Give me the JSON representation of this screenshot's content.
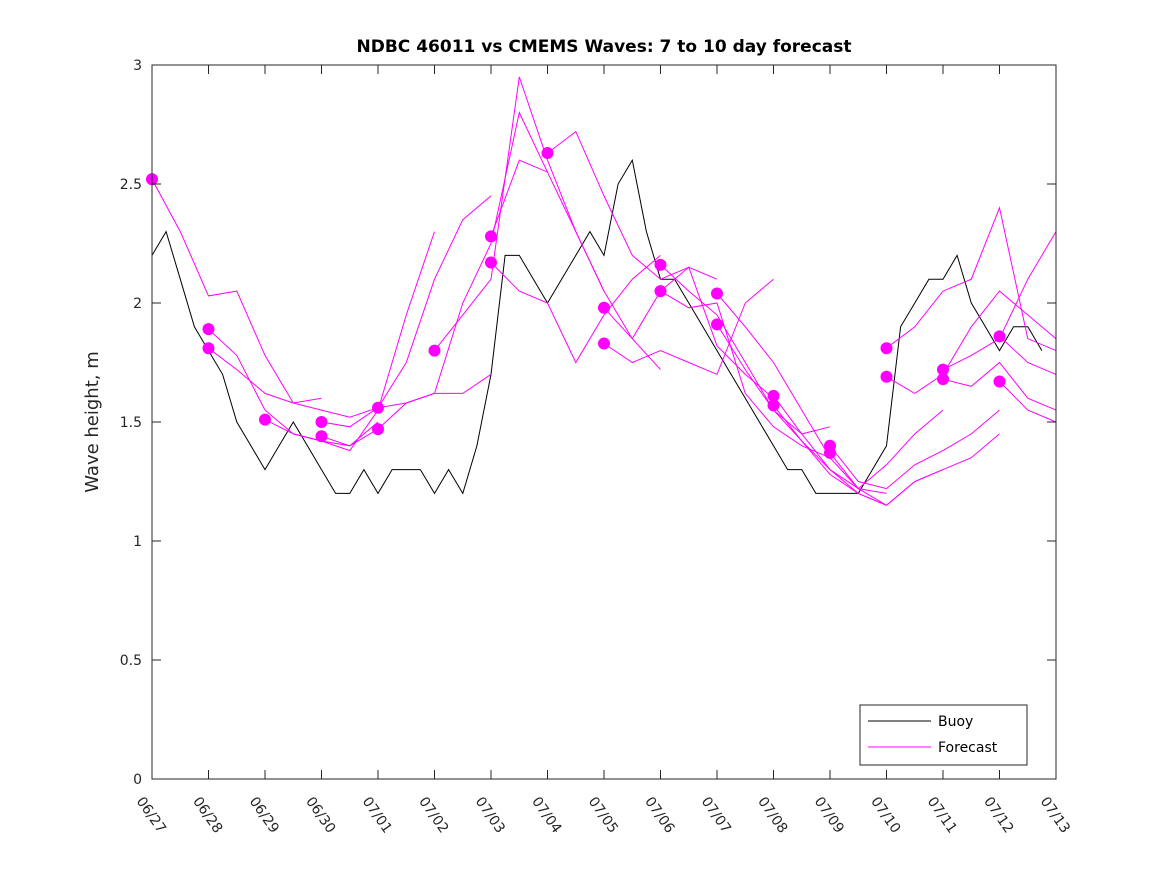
{
  "chart_data": {
    "type": "line",
    "title": "NDBC 46011 vs CMEMS Waves: 7 to 10 day forecast",
    "xlabel": "",
    "ylabel": "Wave height, m",
    "xlim": [
      "06/27",
      "07/13"
    ],
    "ylim": [
      0,
      3
    ],
    "x_tick_labels": [
      "06/27",
      "06/28",
      "06/29",
      "06/30",
      "07/01",
      "07/02",
      "07/03",
      "07/04",
      "07/05",
      "07/06",
      "07/07",
      "07/08",
      "07/09",
      "07/10",
      "07/11",
      "07/12",
      "07/13"
    ],
    "y_tick_labels": [
      "0",
      "0.5",
      "1",
      "1.5",
      "2",
      "2.5",
      "3"
    ],
    "grid": false,
    "legend": {
      "position": "bottom-right",
      "entries": [
        "Buoy",
        "Forecast"
      ]
    },
    "colors": {
      "buoy": "#000000",
      "forecast": "#ff00ff"
    },
    "series": [
      {
        "name": "Buoy",
        "x": [
          "06/27 00:00",
          "06/27 06:00",
          "06/27 12:00",
          "06/27 18:00",
          "06/28 00:00",
          "06/28 06:00",
          "06/28 12:00",
          "06/28 18:00",
          "06/29 00:00",
          "06/29 06:00",
          "06/29 12:00",
          "06/29 18:00",
          "06/30 00:00",
          "06/30 06:00",
          "06/30 12:00",
          "06/30 18:00",
          "07/01 00:00",
          "07/01 06:00",
          "07/01 12:00",
          "07/01 18:00",
          "07/02 00:00",
          "07/02 06:00",
          "07/02 12:00",
          "07/02 18:00",
          "07/03 00:00",
          "07/03 06:00",
          "07/03 12:00",
          "07/03 18:00",
          "07/04 00:00",
          "07/04 06:00",
          "07/04 12:00",
          "07/04 18:00",
          "07/05 00:00",
          "07/05 06:00",
          "07/05 12:00",
          "07/05 18:00",
          "07/06 00:00",
          "07/06 06:00",
          "07/06 12:00",
          "07/06 18:00",
          "07/07 00:00",
          "07/07 06:00",
          "07/07 12:00",
          "07/07 18:00",
          "07/08 00:00",
          "07/08 06:00",
          "07/08 12:00",
          "07/08 18:00",
          "07/09 00:00",
          "07/09 06:00",
          "07/09 12:00",
          "07/09 18:00",
          "07/10 00:00",
          "07/10 06:00",
          "07/10 12:00",
          "07/10 18:00",
          "07/11 00:00",
          "07/11 06:00",
          "07/11 12:00",
          "07/11 18:00",
          "07/12 00:00",
          "07/12 06:00",
          "07/12 12:00",
          "07/12 18:00"
        ],
        "values": [
          2.2,
          2.3,
          2.1,
          1.9,
          1.8,
          1.7,
          1.5,
          1.4,
          1.3,
          1.4,
          1.5,
          1.4,
          1.3,
          1.2,
          1.2,
          1.3,
          1.2,
          1.3,
          1.3,
          1.3,
          1.2,
          1.3,
          1.2,
          1.4,
          1.7,
          2.2,
          2.2,
          2.1,
          2.0,
          2.1,
          2.2,
          2.3,
          2.2,
          2.5,
          2.6,
          2.3,
          2.1,
          2.1,
          2.0,
          1.9,
          1.8,
          1.7,
          1.6,
          1.5,
          1.4,
          1.3,
          1.3,
          1.2,
          1.2,
          1.2,
          1.2,
          1.3,
          1.4,
          1.9,
          2.0,
          2.1,
          2.1,
          2.2,
          2.0,
          1.9,
          1.8,
          1.9,
          1.9,
          1.8
        ]
      },
      {
        "name": "Forecast",
        "runs": [
          {
            "x": [
              "06/27 00:00",
              "06/27 12:00",
              "06/28 00:00",
              "06/28 12:00",
              "06/29 00:00",
              "06/29 12:00",
              "06/30 00:00"
            ],
            "values": [
              2.52,
              2.3,
              2.03,
              2.05,
              1.78,
              1.58,
              1.6
            ]
          },
          {
            "x": [
              "06/28 00:00",
              "06/28 12:00",
              "06/29 00:00",
              "06/29 12:00",
              "06/30 00:00",
              "06/30 12:00",
              "07/01 00:00"
            ],
            "values": [
              1.89,
              1.78,
              1.55,
              1.45,
              1.42,
              1.4,
              1.5
            ]
          },
          {
            "x": [
              "06/28 00:00",
              "06/28 12:00",
              "06/29 00:00",
              "06/29 12:00",
              "06/30 00:00",
              "06/30 12:00",
              "07/01 00:00"
            ],
            "values": [
              1.81,
              1.72,
              1.62,
              1.58,
              1.55,
              1.52,
              1.56
            ]
          },
          {
            "x": [
              "06/29 00:00",
              "06/29 12:00",
              "06/30 00:00",
              "06/30 12:00",
              "07/01 00:00",
              "07/01 12:00",
              "07/02 00:00"
            ],
            "values": [
              1.51,
              1.45,
              1.42,
              1.38,
              1.55,
              1.95,
              2.3
            ]
          },
          {
            "x": [
              "06/30 00:00",
              "06/30 12:00",
              "07/01 00:00",
              "07/01 12:00",
              "07/02 00:00",
              "07/02 12:00",
              "07/03 00:00"
            ],
            "values": [
              1.5,
              1.48,
              1.56,
              1.75,
              2.1,
              2.35,
              2.45
            ]
          },
          {
            "x": [
              "06/30 00:00",
              "06/30 12:00",
              "07/01 00:00",
              "07/01 12:00",
              "07/02 00:00",
              "07/02 12:00",
              "07/03 00:00"
            ],
            "values": [
              1.44,
              1.4,
              1.47,
              1.58,
              1.62,
              1.62,
              1.7
            ]
          },
          {
            "x": [
              "07/01 00:00",
              "07/01 12:00",
              "07/02 00:00",
              "07/02 12:00",
              "07/03 00:00",
              "07/03 12:00",
              "07/04 00:00"
            ],
            "values": [
              1.56,
              1.58,
              1.62,
              2.0,
              2.25,
              2.8,
              2.55
            ]
          },
          {
            "x": [
              "07/02 00:00",
              "07/02 12:00",
              "07/03 00:00",
              "07/03 12:00",
              "07/04 00:00",
              "07/04 12:00",
              "07/05 00:00"
            ],
            "values": [
              1.8,
              1.95,
              2.1,
              2.95,
              2.6,
              2.3,
              2.05
            ]
          },
          {
            "x": [
              "07/03 00:00",
              "07/03 12:00",
              "07/04 00:00",
              "07/04 12:00",
              "07/05 00:00",
              "07/05 12:00",
              "07/06 00:00"
            ],
            "values": [
              2.28,
              2.6,
              2.55,
              2.3,
              2.05,
              1.85,
              1.72
            ]
          },
          {
            "x": [
              "07/03 00:00",
              "07/03 12:00",
              "07/04 00:00",
              "07/04 12:00",
              "07/05 00:00",
              "07/05 12:00",
              "07/06 00:00"
            ],
            "values": [
              2.17,
              2.05,
              2.0,
              1.75,
              1.95,
              2.1,
              2.2
            ]
          },
          {
            "x": [
              "07/04 00:00",
              "07/04 12:00",
              "07/05 00:00",
              "07/05 12:00",
              "07/06 00:00",
              "07/06 12:00",
              "07/07 00:00"
            ],
            "values": [
              2.63,
              2.72,
              2.45,
              2.2,
              2.1,
              2.15,
              2.1
            ]
          },
          {
            "x": [
              "07/05 00:00",
              "07/05 12:00",
              "07/06 00:00",
              "07/06 12:00",
              "07/07 00:00",
              "07/07 12:00",
              "07/08 00:00"
            ],
            "values": [
              1.98,
              1.85,
              2.05,
              2.15,
              1.82,
              1.7,
              1.6
            ]
          },
          {
            "x": [
              "07/05 00:00",
              "07/05 12:00",
              "07/06 00:00",
              "07/06 12:00",
              "07/07 00:00",
              "07/07 12:00",
              "07/08 00:00"
            ],
            "values": [
              1.83,
              1.75,
              1.8,
              1.75,
              1.7,
              2.0,
              2.1
            ]
          },
          {
            "x": [
              "07/06 00:00",
              "07/06 12:00",
              "07/07 00:00",
              "07/07 12:00",
              "07/08 00:00",
              "07/08 12:00",
              "07/09 00:00"
            ],
            "values": [
              2.16,
              2.05,
              1.95,
              1.75,
              1.55,
              1.45,
              1.48
            ]
          },
          {
            "x": [
              "07/06 00:00",
              "07/06 12:00",
              "07/07 00:00",
              "07/07 12:00",
              "07/08 00:00",
              "07/08 12:00",
              "07/09 00:00"
            ],
            "values": [
              2.05,
              1.98,
              2.0,
              1.62,
              1.48,
              1.4,
              1.35
            ]
          },
          {
            "x": [
              "07/07 00:00",
              "07/07 12:00",
              "07/08 00:00",
              "07/08 12:00",
              "07/09 00:00",
              "07/09 12:00",
              "07/10 00:00"
            ],
            "values": [
              2.04,
              1.9,
              1.75,
              1.55,
              1.35,
              1.22,
              1.2
            ]
          },
          {
            "x": [
              "07/07 00:00",
              "07/07 12:00",
              "07/08 00:00",
              "07/08 12:00",
              "07/09 00:00",
              "07/09 12:00",
              "07/10 00:00"
            ],
            "values": [
              1.91,
              1.72,
              1.55,
              1.42,
              1.3,
              1.2,
              1.15
            ]
          },
          {
            "x": [
              "07/08 00:00",
              "07/08 12:00",
              "07/09 00:00",
              "07/09 12:00",
              "07/10 00:00",
              "07/10 12:00",
              "07/11 00:00"
            ],
            "values": [
              1.61,
              1.45,
              1.3,
              1.22,
              1.32,
              1.45,
              1.55
            ]
          },
          {
            "x": [
              "07/08 00:00",
              "07/08 12:00",
              "07/09 00:00",
              "07/09 12:00",
              "07/10 00:00",
              "07/10 12:00",
              "07/11 00:00"
            ],
            "values": [
              1.57,
              1.42,
              1.28,
              1.2,
              1.15,
              1.25,
              1.3
            ]
          },
          {
            "x": [
              "07/09 00:00",
              "07/09 12:00",
              "07/10 00:00",
              "07/10 12:00",
              "07/11 00:00",
              "07/11 12:00",
              "07/12 00:00"
            ],
            "values": [
              1.4,
              1.25,
              1.22,
              1.32,
              1.38,
              1.45,
              1.55
            ]
          },
          {
            "x": [
              "07/09 00:00",
              "07/09 12:00",
              "07/10 00:00",
              "07/10 12:00",
              "07/11 00:00",
              "07/11 12:00",
              "07/12 00:00"
            ],
            "values": [
              1.37,
              1.22,
              1.15,
              1.25,
              1.3,
              1.35,
              1.45
            ]
          },
          {
            "x": [
              "07/10 00:00",
              "07/10 12:00",
              "07/11 00:00",
              "07/11 12:00",
              "07/12 00:00",
              "07/12 12:00",
              "07/13 00:00"
            ],
            "values": [
              1.81,
              1.9,
              2.05,
              2.1,
              2.4,
              1.85,
              1.8
            ]
          },
          {
            "x": [
              "07/10 00:00",
              "07/10 12:00",
              "07/11 00:00",
              "07/11 12:00",
              "07/12 00:00",
              "07/12 12:00",
              "07/13 00:00"
            ],
            "values": [
              1.69,
              1.62,
              1.7,
              1.9,
              2.05,
              1.95,
              1.85
            ]
          },
          {
            "x": [
              "07/11 00:00",
              "07/11 12:00",
              "07/12 00:00",
              "07/12 12:00",
              "07/13 00:00"
            ],
            "values": [
              1.72,
              1.78,
              1.85,
              2.1,
              2.3
            ]
          },
          {
            "x": [
              "07/11 00:00",
              "07/11 12:00",
              "07/12 00:00",
              "07/12 12:00",
              "07/13 00:00"
            ],
            "values": [
              1.68,
              1.65,
              1.75,
              1.6,
              1.55
            ]
          },
          {
            "x": [
              "07/12 00:00",
              "07/12 12:00",
              "07/13 00:00"
            ],
            "values": [
              1.86,
              1.75,
              1.7
            ]
          },
          {
            "x": [
              "07/12 00:00",
              "07/12 12:00",
              "07/13 00:00"
            ],
            "values": [
              1.67,
              1.55,
              1.5
            ]
          }
        ],
        "markers": {
          "x": [
            "06/27 00:00",
            "06/28 00:00",
            "06/28 00:00",
            "06/29 00:00",
            "06/30 00:00",
            "06/30 00:00",
            "07/01 00:00",
            "07/01 00:00",
            "07/02 00:00",
            "07/03 00:00",
            "07/03 00:00",
            "07/04 00:00",
            "07/05 00:00",
            "07/05 00:00",
            "07/06 00:00",
            "07/06 00:00",
            "07/07 00:00",
            "07/07 00:00",
            "07/08 00:00",
            "07/08 00:00",
            "07/09 00:00",
            "07/09 00:00",
            "07/10 00:00",
            "07/10 00:00",
            "07/11 00:00",
            "07/11 00:00",
            "07/12 00:00",
            "07/12 00:00"
          ],
          "values": [
            2.52,
            1.89,
            1.81,
            1.51,
            1.5,
            1.44,
            1.56,
            1.47,
            1.8,
            2.28,
            2.17,
            2.63,
            1.98,
            1.83,
            2.16,
            2.05,
            2.04,
            1.91,
            1.61,
            1.57,
            1.4,
            1.37,
            1.81,
            1.69,
            1.72,
            1.68,
            1.86,
            1.67
          ]
        }
      }
    ]
  }
}
